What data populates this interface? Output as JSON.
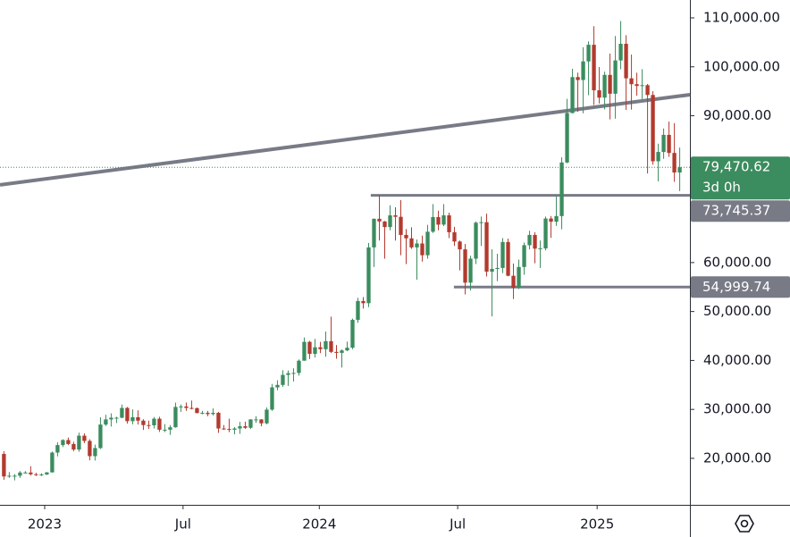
{
  "chart_data": {
    "type": "candlestick",
    "open": [
      20900,
      16300,
      16450,
      16450,
      17100,
      17100,
      16750,
      16700,
      16700,
      17130,
      21180,
      22710,
      23740,
      22930,
      21800,
      24630,
      23560,
      20450,
      22100,
      26900,
      27950,
      28300,
      28300,
      30300,
      27600,
      28400,
      27700,
      26800,
      26750,
      28100,
      25850,
      25850,
      26350,
      30500,
      30600,
      30300,
      30250,
      29250,
      29300,
      29050,
      29300,
      26100,
      26000,
      25850,
      26100,
      26550,
      26250,
      27950,
      27950,
      27150,
      29950,
      34500,
      35000,
      37050,
      37400,
      37450,
      39950,
      43800,
      41350,
      42700,
      42300,
      43950,
      41750,
      41550,
      42050,
      42600,
      48300,
      52150,
      51700,
      63100,
      68950,
      68400,
      67250,
      69650,
      69350,
      65650,
      64950,
      63100,
      63900,
      61500,
      66300,
      69300,
      67750,
      69650,
      66200,
      64300,
      62700,
      55900,
      60800,
      68150,
      68250,
      58150,
      58700,
      58900,
      64200,
      57300,
      54850,
      59100,
      63550,
      65650,
      62850,
      62900,
      69000,
      68350,
      69500,
      80450,
      90550,
      97900,
      97300,
      101100,
      104500,
      95200,
      93700,
      98350,
      94500,
      101300,
      104700,
      97650,
      96450,
      96100,
      96250,
      94250,
      80700,
      82600,
      86100,
      82400,
      78400
    ],
    "high": [
      21450,
      17200,
      16800,
      17400,
      17400,
      18400,
      17050,
      16950,
      17200,
      21400,
      23300,
      23900,
      24250,
      23400,
      25250,
      25100,
      23900,
      22800,
      28400,
      28900,
      29200,
      28500,
      31000,
      30500,
      30000,
      29800,
      28000,
      27700,
      28450,
      28500,
      27000,
      26800,
      31400,
      31000,
      31400,
      31800,
      30400,
      29700,
      29700,
      30200,
      29500,
      26800,
      28100,
      26400,
      27450,
      27500,
      28000,
      28600,
      28000,
      30400,
      35200,
      35950,
      38000,
      37950,
      38400,
      40200,
      44700,
      44000,
      44400,
      43800,
      45900,
      48950,
      43150,
      42250,
      43850,
      48550,
      52800,
      52950,
      64000,
      69000,
      73750,
      68500,
      71700,
      71300,
      72750,
      66850,
      67200,
      64700,
      65500,
      67700,
      71950,
      70600,
      71950,
      70200,
      67300,
      64500,
      63800,
      61400,
      68400,
      69400,
      70000,
      62700,
      61800,
      65000,
      64900,
      59800,
      60600,
      64100,
      66500,
      66200,
      64500,
      69400,
      69500,
      73600,
      81500,
      93450,
      99600,
      98800,
      104000,
      105200,
      108300,
      99950,
      99000,
      102700,
      106300,
      109350,
      106450,
      102500,
      98800,
      99500,
      96500,
      95000,
      84300,
      87400,
      88800,
      88500,
      83500
    ],
    "low": [
      15600,
      16000,
      15500,
      16000,
      16900,
      16500,
      16400,
      16400,
      16600,
      17100,
      20400,
      22300,
      22700,
      21450,
      21350,
      23100,
      19600,
      19550,
      21900,
      26600,
      26500,
      27200,
      28200,
      27100,
      26950,
      26900,
      25800,
      26000,
      26100,
      25400,
      25350,
      24800,
      26250,
      29500,
      29700,
      30000,
      29200,
      29000,
      28600,
      28750,
      25200,
      25800,
      25350,
      24900,
      25000,
      26000,
      26000,
      27250,
      26550,
      26950,
      29700,
      33900,
      34600,
      34800,
      35700,
      36900,
      39950,
      40300,
      40600,
      41500,
      40750,
      41500,
      40350,
      38550,
      41900,
      42300,
      47700,
      50600,
      50900,
      59100,
      64500,
      60800,
      66600,
      64500,
      61500,
      59700,
      62800,
      56500,
      60200,
      60800,
      66050,
      66600,
      67450,
      65000,
      63400,
      58400,
      53500,
      54300,
      59700,
      63400,
      57150,
      49000,
      56200,
      57850,
      57200,
      52550,
      54600,
      57500,
      62700,
      59850,
      58900,
      62500,
      65050,
      67500,
      66800,
      80300,
      90500,
      90800,
      90500,
      94200,
      92200,
      92500,
      91300,
      89250,
      89400,
      99500,
      91200,
      91250,
      94100,
      93400,
      78200,
      80000,
      76600,
      81200,
      81600,
      76500,
      74600
    ],
    "close": [
      16300,
      16450,
      16450,
      17100,
      17100,
      16750,
      16700,
      16700,
      17130,
      21180,
      22710,
      23740,
      22930,
      21800,
      24630,
      23560,
      20450,
      22100,
      26900,
      27950,
      28300,
      28300,
      30300,
      27600,
      28400,
      27700,
      26800,
      26750,
      28100,
      25850,
      25850,
      26350,
      30500,
      30600,
      30300,
      30250,
      29250,
      29300,
      29050,
      29300,
      26100,
      26000,
      25850,
      26100,
      26550,
      26250,
      27950,
      27950,
      27150,
      29950,
      34500,
      35000,
      37050,
      37400,
      37450,
      39950,
      43800,
      41350,
      42700,
      42300,
      43950,
      41750,
      41550,
      42050,
      42600,
      48300,
      52150,
      51700,
      63100,
      68950,
      68400,
      67250,
      69650,
      69350,
      65650,
      64950,
      63100,
      63900,
      61500,
      66300,
      69300,
      67750,
      69650,
      66200,
      64300,
      62700,
      55900,
      60800,
      68150,
      68250,
      58150,
      58700,
      58900,
      64200,
      57300,
      54850,
      59100,
      63550,
      65650,
      62850,
      62900,
      69000,
      68350,
      69500,
      80450,
      90550,
      97900,
      97300,
      101100,
      104500,
      95200,
      93700,
      98350,
      94500,
      101300,
      104700,
      97650,
      96450,
      96100,
      96250,
      94250,
      80700,
      82600,
      86100,
      82400,
      78400,
      79470.62
    ],
    "up_color": "#3b8c5e",
    "down_color": "#b23a2e",
    "xlim": [
      -0.73,
      127.9
    ],
    "xticks": [
      {
        "value": 7.6,
        "label": "2023"
      },
      {
        "value": 33.4,
        "label": "Jul"
      },
      {
        "value": 58.8,
        "label": "2024"
      },
      {
        "value": 84.6,
        "label": "Jul"
      },
      {
        "value": 110.6,
        "label": "2025"
      }
    ],
    "ylim": [
      10500,
      113650
    ],
    "yticks": [
      {
        "value": 20000,
        "label": "20,000.00"
      },
      {
        "value": 30000,
        "label": "30,000.00"
      },
      {
        "value": 40000,
        "label": "40,000.00"
      },
      {
        "value": 50000,
        "label": "50,000.00"
      },
      {
        "value": 60000,
        "label": "60,000.00"
      },
      {
        "value": 90000,
        "label": "90,000.00"
      },
      {
        "value": 100000,
        "label": "100,000.00"
      },
      {
        "value": 110000,
        "label": "110,000.00"
      }
    ],
    "trendline": {
      "x": [
        -0.73,
        127.9
      ],
      "y": [
        75880,
        94300
      ],
      "color": "#787b86"
    },
    "hlines": [
      {
        "value": 73745.37,
        "label": "73,745.37",
        "x_start": 68.4
      },
      {
        "value": 54999.74,
        "label": "54,999.74",
        "x_start": 83.9
      }
    ],
    "hline_color": "#787b86",
    "last_price": {
      "value": 79470.62,
      "label": "79,470.62",
      "countdown": "3d 0h"
    }
  }
}
